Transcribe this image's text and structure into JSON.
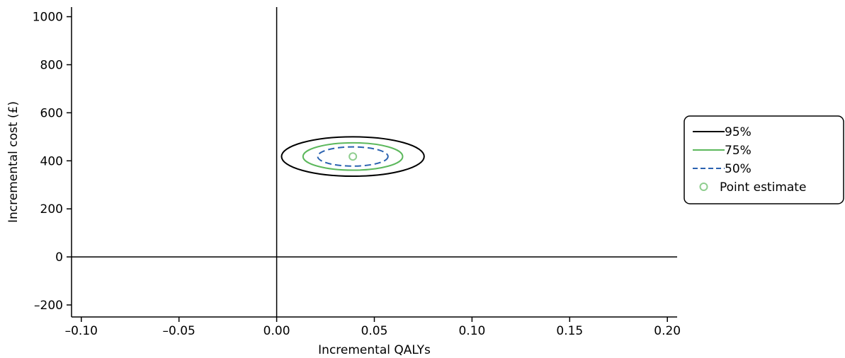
{
  "chart_data": {
    "type": "scatter",
    "xlabel": "Incremental QALYs",
    "ylabel": "Incremental cost (£)",
    "xlim": [
      -0.105,
      0.205
    ],
    "ylim": [
      -250,
      1040
    ],
    "x_ticks": [
      -0.1,
      -0.05,
      0.0,
      0.05,
      0.1,
      0.15,
      0.2
    ],
    "x_tick_labels": [
      "–0.10",
      "–0.05",
      "0.00",
      "0.05",
      "0.10",
      "0.15",
      "0.20"
    ],
    "y_ticks": [
      -200,
      0,
      200,
      400,
      600,
      800,
      1000
    ],
    "y_tick_labels": [
      "–200",
      "0",
      "200",
      "400",
      "600",
      "800",
      "1000"
    ],
    "reference_lines": {
      "x": 0,
      "y": 0
    },
    "grid": false,
    "legend_position": "right",
    "series": [
      {
        "name": "95%",
        "kind": "ellipse",
        "center": [
          0.039,
          418
        ],
        "semi_axis_x": 0.0365,
        "semi_axis_y": 82,
        "color": "#000000",
        "dash": "solid"
      },
      {
        "name": "75%",
        "kind": "ellipse",
        "center": [
          0.039,
          418
        ],
        "semi_axis_x": 0.0255,
        "semi_axis_y": 57,
        "color": "#5cb85c",
        "dash": "solid"
      },
      {
        "name": "50%",
        "kind": "ellipse",
        "center": [
          0.039,
          418
        ],
        "semi_axis_x": 0.018,
        "semi_axis_y": 40,
        "color": "#2a62b0",
        "dash": "dashed"
      },
      {
        "name": "Point estimate",
        "kind": "point",
        "x": 0.039,
        "y": 418,
        "color": "#8fce8f",
        "marker": "circle-open"
      }
    ]
  }
}
